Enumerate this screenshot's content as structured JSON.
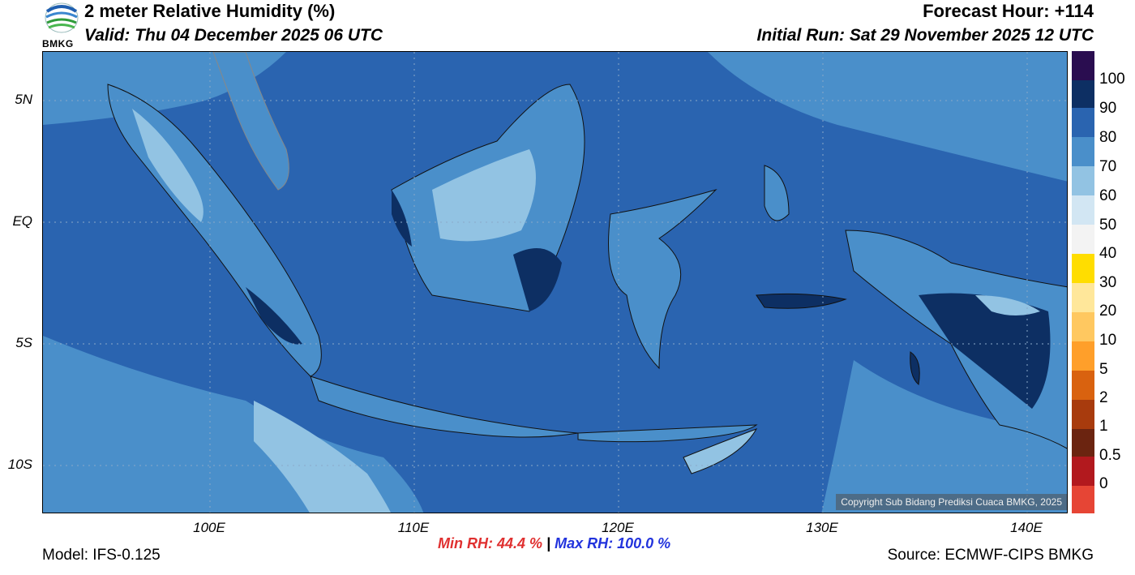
{
  "header": {
    "title": "2 meter Relative Humidity (%)",
    "valid": "Valid: Thu 04 December 2025 06 UTC",
    "forecast_hour": "Forecast Hour: +114",
    "initial_run": "Initial Run: Sat 29 November 2025 12 UTC",
    "logo_text": "BMKG"
  },
  "map": {
    "lat_labels": [
      "5N",
      "EQ",
      "5S",
      "10S"
    ],
    "lon_labels": [
      "100E",
      "110E",
      "120E",
      "130E",
      "140E"
    ],
    "copyright": "Copyright Sub Bidang Prediksi Cuaca BMKG, 2025",
    "ocean_color": "#2a64b0",
    "land_color": "#4a8fca"
  },
  "colorbar": {
    "labels": [
      "100",
      "90",
      "80",
      "70",
      "60",
      "50",
      "40",
      "30",
      "20",
      "10",
      "5",
      "2",
      "1",
      "0.5",
      "0"
    ],
    "colors": [
      "#2a0d50",
      "#0d2f63",
      "#2a64b0",
      "#4a8fca",
      "#92c3e3",
      "#d2e6f3",
      "#f3f3f3",
      "#ffdd00",
      "#ffe79a",
      "#ffc860",
      "#ff9f2a",
      "#d9620f",
      "#a83b0d",
      "#6b2410",
      "#b2191e",
      "#e64535"
    ]
  },
  "footer": {
    "model": "Model: IFS-0.125",
    "min_rh": "Min RH:  44.4 %",
    "separator": "|",
    "max_rh": "Max RH: 100.0 %",
    "source": "Source: ECMWF-CIPS BMKG"
  }
}
